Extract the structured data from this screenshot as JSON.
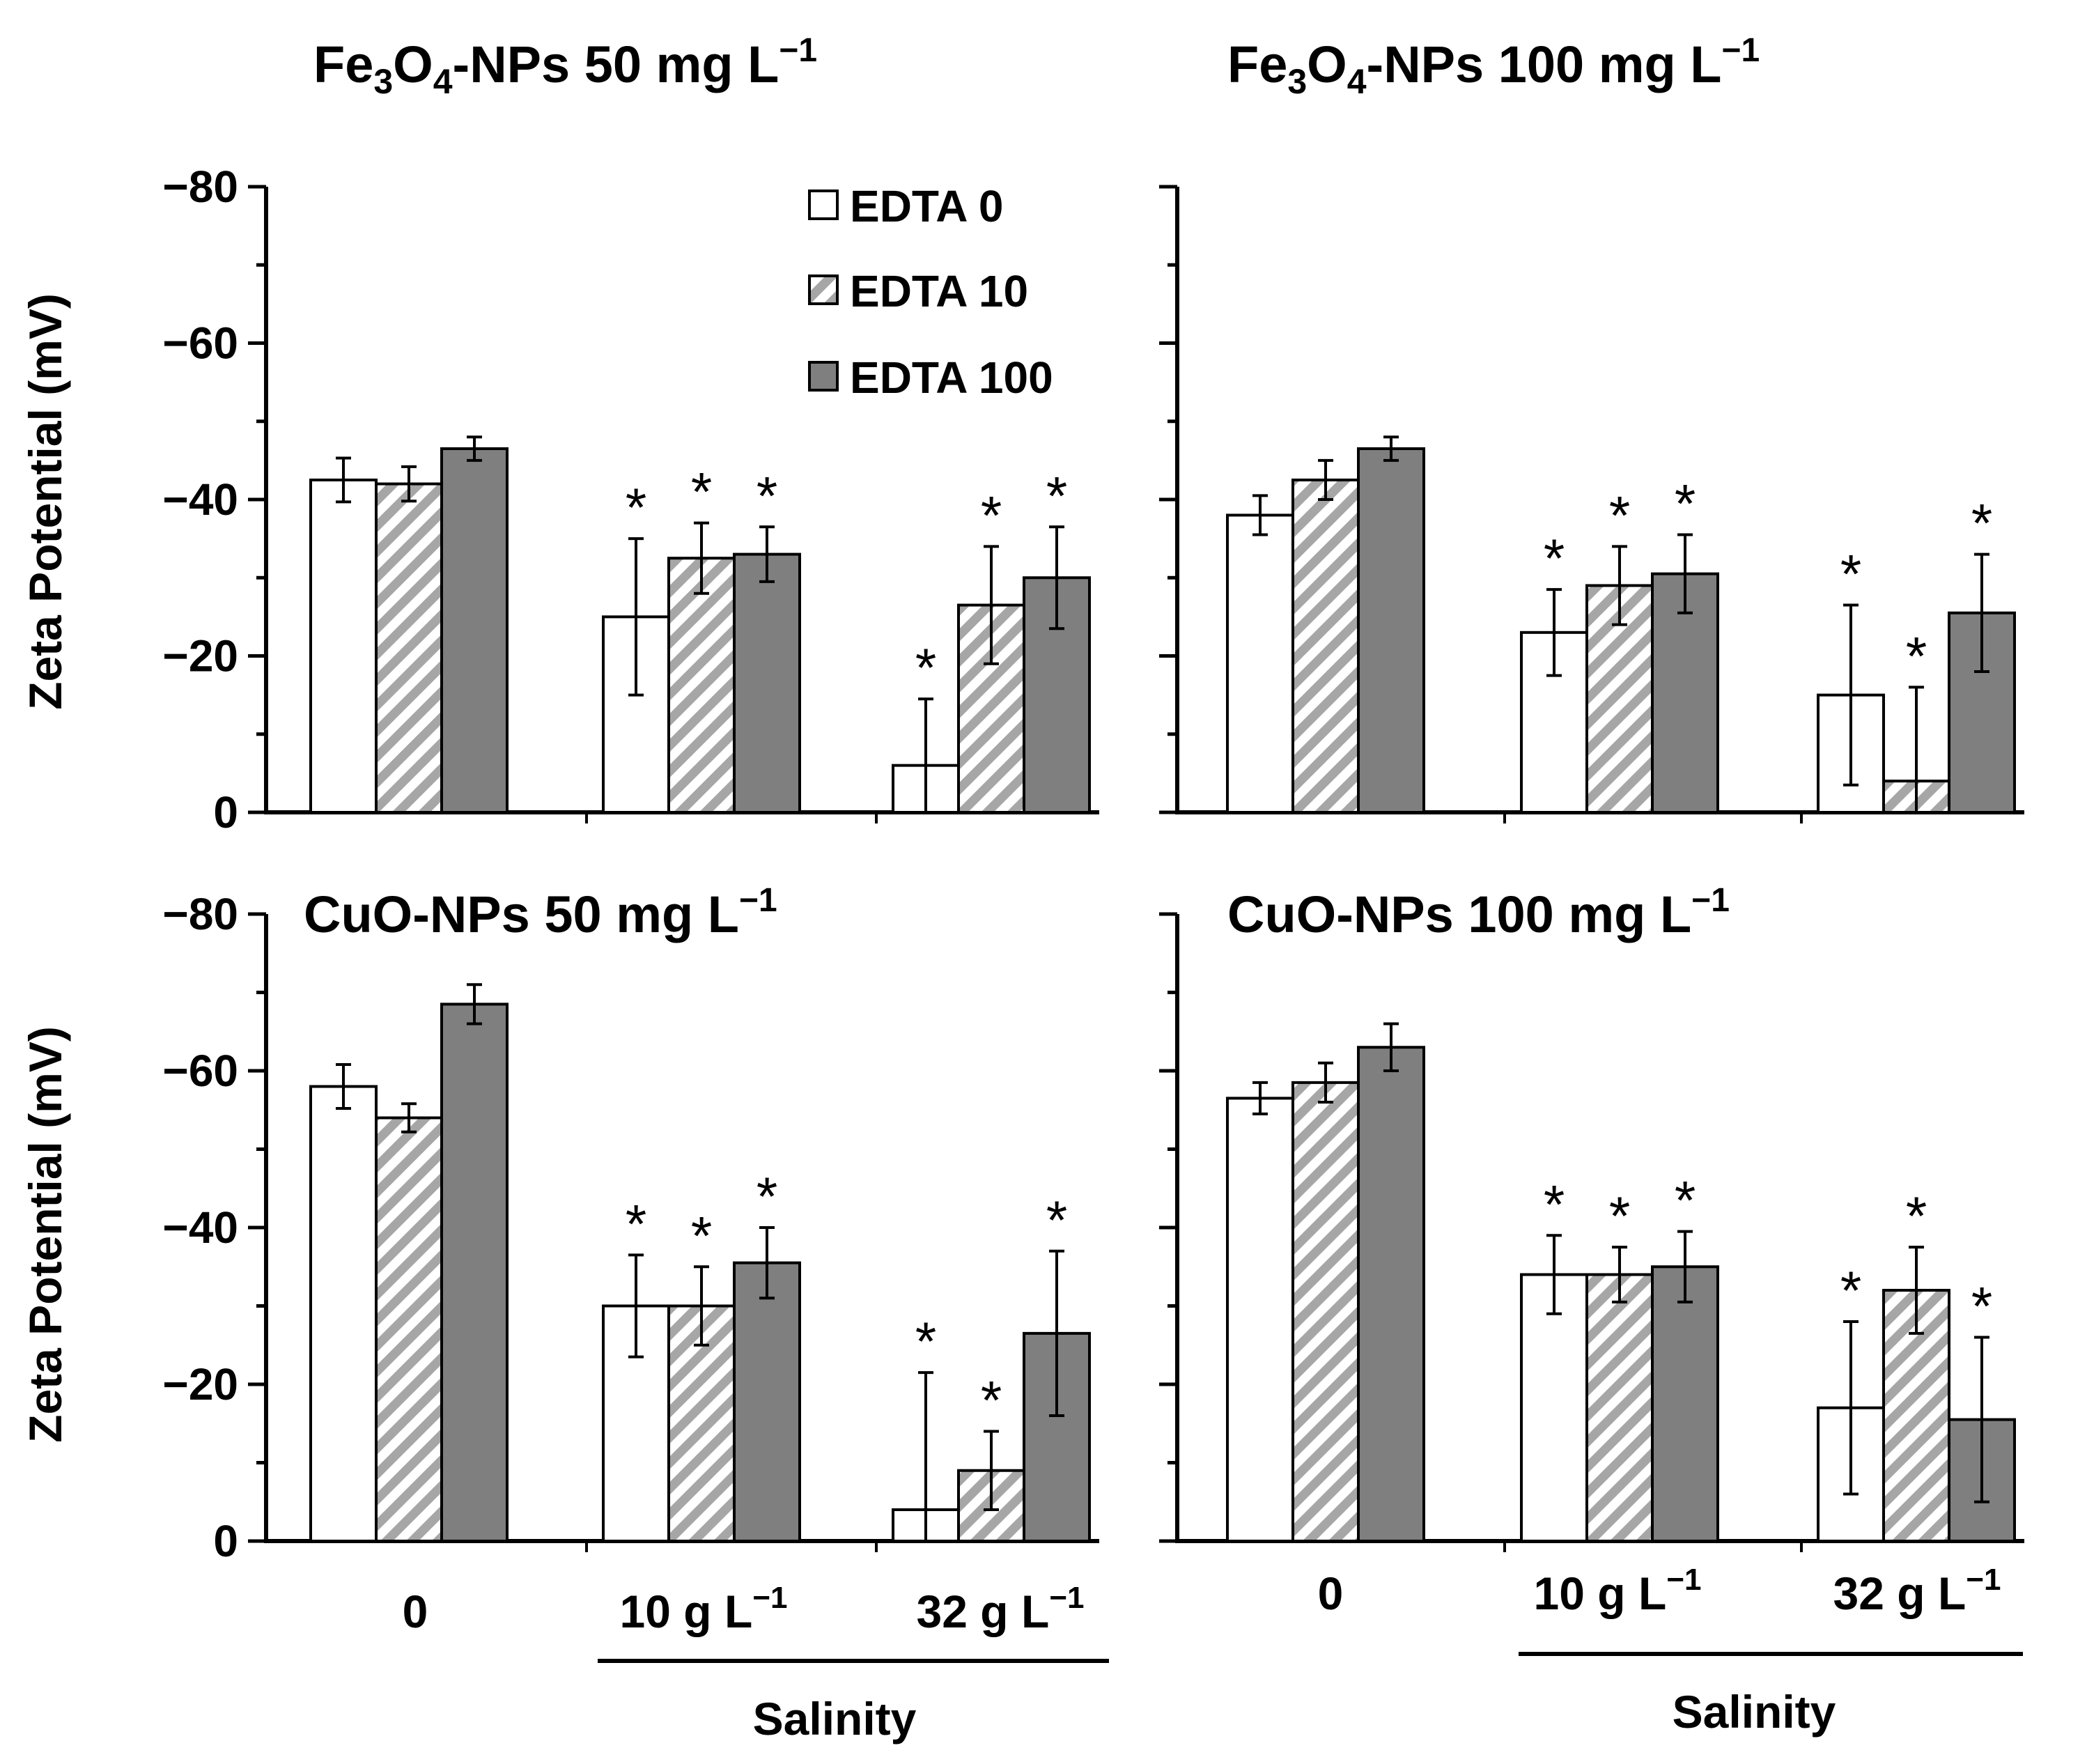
{
  "chart_data": [
    {
      "type": "bar",
      "title": "Fe3O4-NPs 50 mg L−1",
      "title_parts": {
        "prefix": "Fe",
        "sub1": "3",
        "mid": "O",
        "sub2": "4",
        "rest": "-NPs 50 mg L",
        "sup": "−1"
      },
      "ylabel": "Zeta Potential (mV)",
      "ylim": [
        0,
        -80
      ],
      "yticks": [
        "0",
        "−20",
        "−40",
        "−60",
        "−80"
      ],
      "categories": [
        "0",
        "10 g L−1",
        "32 g L−1"
      ],
      "series": [
        {
          "name": "EDTA 0",
          "values": [
            -42.5,
            -25,
            -6
          ],
          "errors": [
            2.8,
            10,
            8.5
          ],
          "sig": [
            false,
            true,
            true
          ]
        },
        {
          "name": "EDTA 10",
          "values": [
            -42,
            -32.5,
            -26.5
          ],
          "errors": [
            2.2,
            4.5,
            7.5
          ],
          "sig": [
            false,
            true,
            true
          ]
        },
        {
          "name": "EDTA 100",
          "values": [
            -46.5,
            -33,
            -30
          ],
          "errors": [
            1.5,
            3.5,
            6.5
          ],
          "sig": [
            false,
            true,
            true
          ]
        }
      ]
    },
    {
      "type": "bar",
      "title": "Fe3O4-NPs 100 mg L−1",
      "title_parts": {
        "prefix": "Fe",
        "sub1": "3",
        "mid": "O",
        "sub2": "4",
        "rest": "-NPs 100 mg L",
        "sup": "−1"
      },
      "ylabel": "",
      "ylim": [
        0,
        -80
      ],
      "yticks": [],
      "categories": [
        "0",
        "10 g L−1",
        "32 g L−1"
      ],
      "series": [
        {
          "name": "EDTA 0",
          "values": [
            -38,
            -23,
            -15
          ],
          "errors": [
            2.5,
            5.5,
            11.5
          ],
          "sig": [
            false,
            true,
            true
          ]
        },
        {
          "name": "EDTA 10",
          "values": [
            -42.5,
            -29,
            -4
          ],
          "errors": [
            2.5,
            5,
            12
          ],
          "sig": [
            false,
            true,
            true
          ]
        },
        {
          "name": "EDTA 100",
          "values": [
            -46.5,
            -30.5,
            -25.5
          ],
          "errors": [
            1.5,
            5,
            7.5
          ],
          "sig": [
            false,
            true,
            true
          ]
        }
      ]
    },
    {
      "type": "bar",
      "title": "CuO-NPs 50 mg L−1",
      "title_parts": {
        "prefix": "CuO-NPs 50 mg L",
        "sup": "−1"
      },
      "ylabel": "Zeta Potential (mV)",
      "ylim": [
        0,
        -80
      ],
      "yticks": [
        "0",
        "−20",
        "−40",
        "−60",
        "−80"
      ],
      "categories": [
        "0",
        "10 g L−1",
        "32 g L−1"
      ],
      "xlabel": "Salinity",
      "series": [
        {
          "name": "EDTA 0",
          "values": [
            -58,
            -30,
            -4
          ],
          "errors": [
            2.8,
            6.5,
            17.5
          ],
          "sig": [
            false,
            true,
            true
          ]
        },
        {
          "name": "EDTA 10",
          "values": [
            -54,
            -30,
            -9
          ],
          "errors": [
            1.8,
            5,
            5
          ],
          "sig": [
            false,
            true,
            true
          ]
        },
        {
          "name": "EDTA 100",
          "values": [
            -68.5,
            -35.5,
            -26.5
          ],
          "errors": [
            2.5,
            4.5,
            10.5
          ],
          "sig": [
            false,
            true,
            true
          ]
        }
      ]
    },
    {
      "type": "bar",
      "title": "CuO-NPs 100 mg L−1",
      "title_parts": {
        "prefix": "CuO-NPs 100 mg L",
        "sup": "−1"
      },
      "ylabel": "",
      "ylim": [
        0,
        -80
      ],
      "yticks": [],
      "categories": [
        "0",
        "10 g L−1",
        "32 g L−1"
      ],
      "xlabel": "Salinity",
      "series": [
        {
          "name": "EDTA 0",
          "values": [
            -56.5,
            -34,
            -17
          ],
          "errors": [
            2,
            5,
            11
          ],
          "sig": [
            false,
            true,
            true
          ]
        },
        {
          "name": "EDTA 10",
          "values": [
            -58.5,
            -34,
            -32
          ],
          "errors": [
            2.5,
            3.5,
            5.5
          ],
          "sig": [
            false,
            true,
            true
          ]
        },
        {
          "name": "EDTA 100",
          "values": [
            -63,
            -35,
            -15.5
          ],
          "errors": [
            3,
            4.5,
            10.5
          ],
          "sig": [
            false,
            true,
            true
          ]
        }
      ]
    }
  ],
  "legend": [
    {
      "label": "EDTA 0",
      "style": "white"
    },
    {
      "label": "EDTA 10",
      "style": "hatched"
    },
    {
      "label": "EDTA 100",
      "style": "gray"
    }
  ],
  "xcat_labels": {
    "zero": "0",
    "ten": {
      "main": "10 g L",
      "sup": "−1"
    },
    "thirtytwo": {
      "main": "32 g L",
      "sup": "−1"
    }
  },
  "salinity_label": "Salinity",
  "significance_mark": "*",
  "colors": {
    "white": "#ffffff",
    "gray": "#7f7f7f",
    "hatch": "#a6a6a6",
    "stroke": "#000000"
  }
}
